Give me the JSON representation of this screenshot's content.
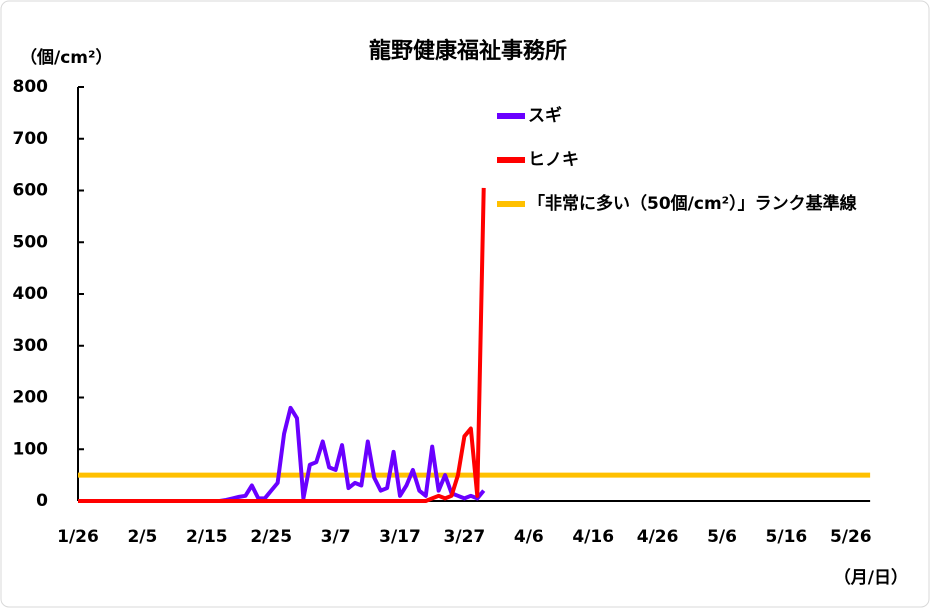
{
  "chart_data": {
    "type": "line",
    "title": "龍野健康福祉事務所",
    "y_label": "（個/cm²）",
    "x_label": "（月/日）",
    "categories": [
      "1/26",
      null,
      null,
      null,
      null,
      null,
      null,
      null,
      null,
      null,
      "2/5",
      null,
      null,
      null,
      null,
      null,
      null,
      null,
      null,
      null,
      "2/15",
      null,
      null,
      null,
      null,
      null,
      null,
      null,
      null,
      null,
      "2/25",
      null,
      null,
      null,
      null,
      null,
      null,
      null,
      null,
      null,
      "3/7",
      null,
      null,
      null,
      null,
      null,
      null,
      null,
      null,
      null,
      "3/17",
      null,
      null,
      null,
      null,
      null,
      null,
      null,
      null,
      null,
      "3/27",
      null,
      null,
      null,
      null,
      null,
      null,
      null,
      null,
      null,
      "4/6",
      null,
      null,
      null,
      null,
      null,
      null,
      null,
      null,
      null,
      "4/16",
      null,
      null,
      null,
      null,
      null,
      null,
      null,
      null,
      null,
      "4/26",
      null,
      null,
      null,
      null,
      null,
      null,
      null,
      null,
      null,
      "5/6",
      null,
      null,
      null,
      null,
      null,
      null,
      null,
      null,
      null,
      "5/16",
      null,
      null,
      null,
      null,
      null,
      null,
      null,
      null,
      null,
      "5/26",
      null,
      null,
      null
    ],
    "series": [
      {
        "name": "スギ",
        "color": "#6a00ff",
        "values": [
          0,
          0,
          0,
          0,
          0,
          0,
          0,
          0,
          0,
          0,
          0,
          0,
          0,
          0,
          0,
          0,
          0,
          0,
          0,
          0,
          0,
          0,
          0,
          2,
          5,
          8,
          10,
          30,
          5,
          5,
          20,
          35,
          130,
          180,
          160,
          5,
          70,
          75,
          115,
          65,
          60,
          108,
          25,
          35,
          30,
          115,
          45,
          20,
          25,
          95,
          10,
          30,
          60,
          20,
          10,
          105,
          20,
          50,
          15,
          10,
          5,
          10,
          5,
          20,
          null,
          null,
          null,
          null,
          null,
          null,
          null,
          null,
          null,
          null,
          null,
          null,
          null,
          null,
          null,
          null,
          null,
          null,
          null,
          null,
          null,
          null,
          null,
          null,
          null,
          null,
          null,
          null,
          null,
          null,
          null,
          null,
          null,
          null,
          null,
          null,
          null,
          null,
          null,
          null,
          null,
          null,
          null,
          null,
          null,
          null,
          null,
          null,
          null,
          null,
          null,
          null,
          null,
          null,
          null,
          null,
          null,
          null,
          null,
          null
        ]
      },
      {
        "name": "ヒノキ",
        "color": "#ff0000",
        "values": [
          0,
          0,
          0,
          0,
          0,
          0,
          0,
          0,
          0,
          0,
          0,
          0,
          0,
          0,
          0,
          0,
          0,
          0,
          0,
          0,
          0,
          0,
          0,
          0,
          0,
          0,
          0,
          0,
          0,
          0,
          0,
          0,
          0,
          0,
          0,
          0,
          0,
          0,
          0,
          0,
          0,
          0,
          0,
          0,
          0,
          0,
          0,
          0,
          0,
          0,
          0,
          0,
          0,
          0,
          0,
          5,
          10,
          5,
          10,
          50,
          125,
          140,
          10,
          605,
          null,
          null,
          null,
          null,
          null,
          null,
          null,
          null,
          null,
          null,
          null,
          null,
          null,
          null,
          null,
          null,
          null,
          null,
          null,
          null,
          null,
          null,
          null,
          null,
          null,
          null,
          null,
          null,
          null,
          null,
          null,
          null,
          null,
          null,
          null,
          null,
          null,
          null,
          null,
          null,
          null,
          null,
          null,
          null,
          null,
          null,
          null,
          null,
          null,
          null,
          null,
          null,
          null,
          null,
          null,
          null,
          null,
          null,
          null,
          null
        ]
      }
    ],
    "reference_line": {
      "name": "「非常に多い（50個/cm²）」ランク基準線",
      "value": 50,
      "color": "#ffc000"
    },
    "ylim": [
      0,
      800
    ],
    "yticks": [
      0,
      100,
      200,
      300,
      400,
      500,
      600,
      700,
      800
    ]
  }
}
